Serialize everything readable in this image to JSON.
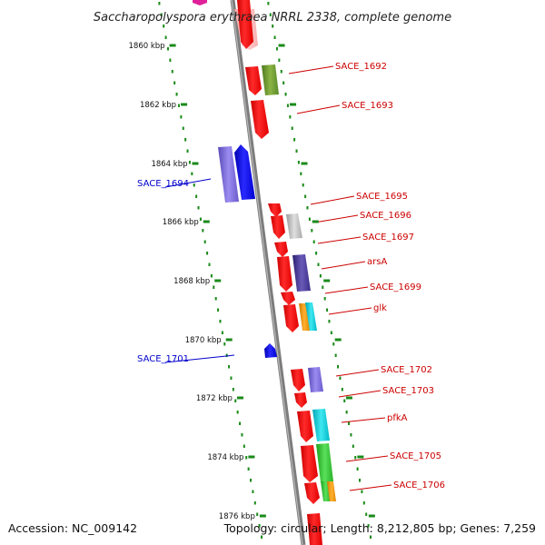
{
  "title": "Saccharopolyspora erythraea NRRL 2338, complete genome",
  "accession": "Accession: NC_009142",
  "topology": "Topology: circular; Length: 8,212,805 bp; Genes: 7,259",
  "colors": {
    "forward_label": "#cc0000",
    "reverse_label": "#0000cc",
    "backbone": "#808080",
    "dots": "#1a8a1a"
  },
  "ticks": [
    {
      "label": "1860 kbp"
    },
    {
      "label": "1862 kbp"
    },
    {
      "label": "1864 kbp"
    },
    {
      "label": "1866 kbp"
    },
    {
      "label": "1868 kbp"
    },
    {
      "label": "1870 kbp"
    },
    {
      "label": "1872 kbp"
    },
    {
      "label": "1874 kbp"
    },
    {
      "label": "1876 kbp"
    }
  ],
  "genes": [
    {
      "name": "SACE_1692",
      "strand": "forward"
    },
    {
      "name": "SACE_1693",
      "strand": "forward"
    },
    {
      "name": "SACE_1694",
      "strand": "reverse"
    },
    {
      "name": "SACE_1695",
      "strand": "forward"
    },
    {
      "name": "SACE_1696",
      "strand": "forward"
    },
    {
      "name": "SACE_1697",
      "strand": "forward"
    },
    {
      "name": "arsA",
      "strand": "forward"
    },
    {
      "name": "SACE_1699",
      "strand": "forward"
    },
    {
      "name": "glk",
      "strand": "forward"
    },
    {
      "name": "SACE_1701",
      "strand": "reverse"
    },
    {
      "name": "SACE_1702",
      "strand": "forward"
    },
    {
      "name": "SACE_1703",
      "strand": "forward"
    },
    {
      "name": "pfkA",
      "strand": "forward"
    },
    {
      "name": "SACE_1705",
      "strand": "forward"
    },
    {
      "name": "SACE_1706",
      "strand": "forward"
    }
  ]
}
